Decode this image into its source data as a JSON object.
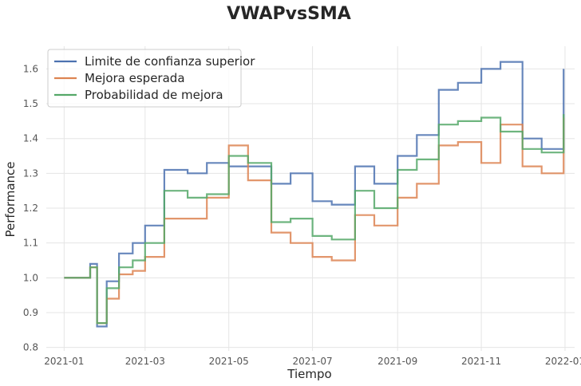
{
  "chart_data": {
    "type": "line",
    "title": "VWAPvsSMA",
    "xlabel": "Tiempo",
    "ylabel": "Performance",
    "x_ticks": [
      "2021-01",
      "2021-03",
      "2021-05",
      "2021-07",
      "2021-09",
      "2021-11",
      "2022-01"
    ],
    "y_ticks": [
      "0.8",
      "0.9",
      "1.0",
      "1.1",
      "1.2",
      "1.3",
      "1.4",
      "1.5",
      "1.6"
    ],
    "xlim": [
      "2020-12-19",
      "2022-01-08"
    ],
    "ylim": [
      0.79,
      1.665
    ],
    "grid": true,
    "legend_position": "top-left",
    "x": [
      "2021-01-01",
      "2021-01-15",
      "2021-01-20",
      "2021-01-25",
      "2021-02-01",
      "2021-02-10",
      "2021-02-20",
      "2021-03-01",
      "2021-03-15",
      "2021-04-01",
      "2021-04-15",
      "2021-05-01",
      "2021-05-15",
      "2021-06-01",
      "2021-06-15",
      "2021-07-01",
      "2021-07-15",
      "2021-08-01",
      "2021-08-15",
      "2021-09-01",
      "2021-09-15",
      "2021-10-01",
      "2021-10-15",
      "2021-11-01",
      "2021-11-15",
      "2021-12-01",
      "2021-12-15",
      "2021-12-31"
    ],
    "series": [
      {
        "name": "Limite de confianza superior",
        "color": "#4c72b0",
        "values": [
          1.0,
          1.0,
          1.04,
          0.86,
          0.99,
          1.07,
          1.1,
          1.15,
          1.31,
          1.3,
          1.33,
          1.32,
          1.32,
          1.27,
          1.3,
          1.22,
          1.21,
          1.32,
          1.27,
          1.35,
          1.41,
          1.54,
          1.56,
          1.6,
          1.62,
          1.4,
          1.37,
          1.6
        ]
      },
      {
        "name": "Mejora esperada",
        "color": "#dd8452",
        "values": [
          1.0,
          1.0,
          1.03,
          0.87,
          0.94,
          1.01,
          1.02,
          1.06,
          1.17,
          1.17,
          1.23,
          1.38,
          1.28,
          1.13,
          1.1,
          1.06,
          1.05,
          1.18,
          1.15,
          1.23,
          1.27,
          1.38,
          1.39,
          1.33,
          1.44,
          1.32,
          1.3,
          1.46
        ]
      },
      {
        "name": "Probabilidad de mejora",
        "color": "#55a868",
        "values": [
          1.0,
          1.0,
          1.03,
          0.87,
          0.97,
          1.03,
          1.05,
          1.1,
          1.25,
          1.23,
          1.24,
          1.35,
          1.33,
          1.16,
          1.17,
          1.12,
          1.11,
          1.25,
          1.2,
          1.31,
          1.34,
          1.44,
          1.45,
          1.46,
          1.42,
          1.37,
          1.36,
          1.47
        ]
      }
    ]
  }
}
